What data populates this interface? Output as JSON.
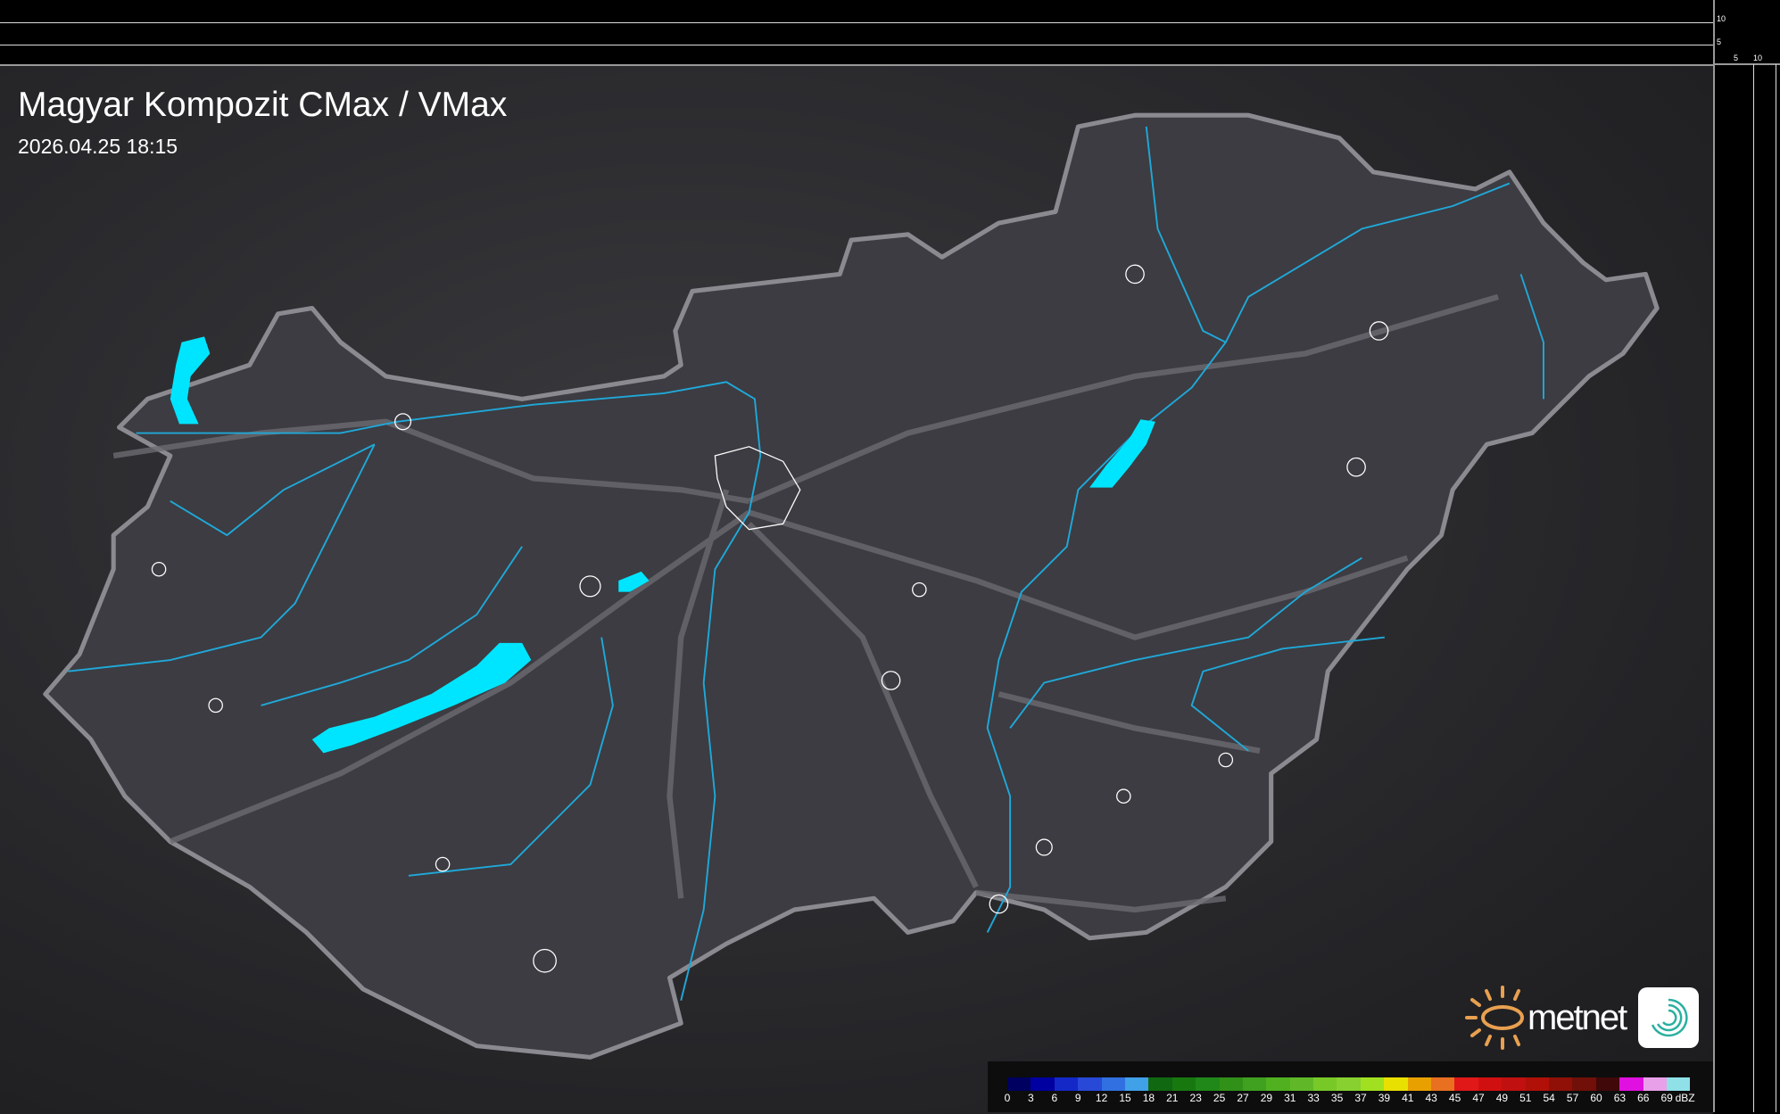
{
  "title": "Magyar Kompozit CMax / VMax",
  "timestamp": "2026.04.25 18:15",
  "scale_ticks": {
    "vertical": [
      "10",
      "5"
    ],
    "horizontal": [
      "5",
      "10"
    ]
  },
  "brand": {
    "name": "metnet",
    "sun_color": "#e8a050",
    "app_icon_color": "#2ab0a0"
  },
  "colors": {
    "country_fill": "#3c3c42",
    "border": "#8a8a90",
    "rivers": "#20a8d8",
    "lakes": "#00e5ff",
    "roads": "#6a6a70",
    "city_outline": "#ffffff"
  },
  "legend": {
    "unit": "dBZ",
    "labels": [
      "0",
      "3",
      "6",
      "9",
      "12",
      "15",
      "18",
      "21",
      "23",
      "25",
      "27",
      "29",
      "31",
      "33",
      "35",
      "37",
      "39",
      "41",
      "43",
      "45",
      "47",
      "49",
      "51",
      "54",
      "57",
      "60",
      "63",
      "66",
      "69"
    ],
    "colors": [
      "#000060",
      "#0000a0",
      "#1428c8",
      "#2848d8",
      "#3070e0",
      "#40a0e8",
      "#106810",
      "#187810",
      "#208818",
      "#309018",
      "#40a020",
      "#50b020",
      "#60b828",
      "#78c828",
      "#88d030",
      "#a0e020",
      "#e8e000",
      "#e8a000",
      "#e87020",
      "#e01818",
      "#d01010",
      "#c01010",
      "#b01008",
      "#901008",
      "#701008",
      "#400808",
      "#e010e0",
      "#e8a0e8",
      "#90e0e8"
    ]
  }
}
